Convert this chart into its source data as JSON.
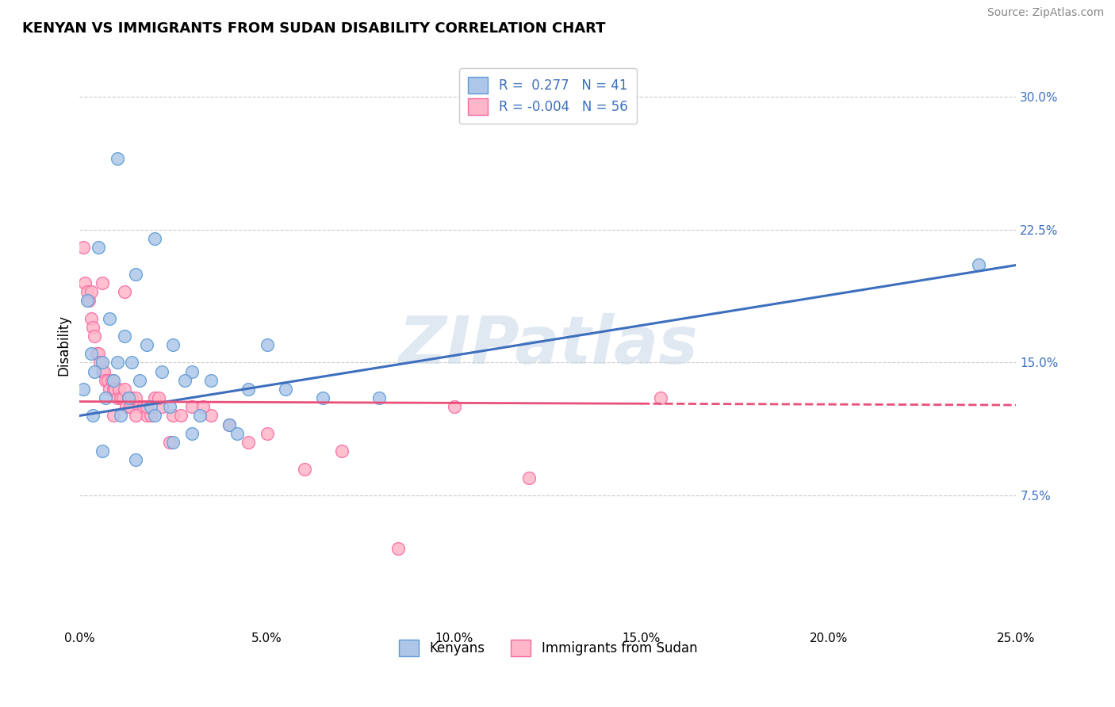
{
  "title": "KENYAN VS IMMIGRANTS FROM SUDAN DISABILITY CORRELATION CHART",
  "source": "Source: ZipAtlas.com",
  "ylabel": "Disability",
  "xlim": [
    0.0,
    25.0
  ],
  "ylim": [
    0.0,
    32.0
  ],
  "xticks": [
    0.0,
    5.0,
    10.0,
    15.0,
    20.0,
    25.0
  ],
  "yticks_right": [
    7.5,
    15.0,
    22.5,
    30.0
  ],
  "kenyan_R": 0.277,
  "kenyan_N": 41,
  "sudan_R": -0.004,
  "sudan_N": 56,
  "kenyan_color": "#aec7e8",
  "kenyan_edge": "#5b9bd5",
  "sudan_color": "#ffb6c8",
  "sudan_edge": "#f768a1",
  "trend_blue": "#3d6fbe",
  "trend_pink": "#e8507a",
  "legend_text_color": "#3d6fbe",
  "watermark": "ZIPatlas",
  "kenyan_x": [
    1.0,
    2.0,
    0.5,
    1.5,
    0.2,
    0.8,
    1.2,
    1.8,
    2.5,
    0.3,
    0.6,
    1.0,
    1.4,
    2.2,
    3.0,
    0.4,
    0.9,
    1.6,
    2.8,
    3.5,
    4.5,
    5.5,
    6.5,
    8.0,
    24.0,
    0.1,
    0.7,
    1.3,
    1.9,
    2.4,
    3.2,
    4.0,
    0.35,
    1.1,
    2.0,
    3.0,
    4.2,
    0.6,
    1.5,
    2.5,
    5.0
  ],
  "kenyan_y": [
    26.5,
    22.0,
    21.5,
    20.0,
    18.5,
    17.5,
    16.5,
    16.0,
    16.0,
    15.5,
    15.0,
    15.0,
    15.0,
    14.5,
    14.5,
    14.5,
    14.0,
    14.0,
    14.0,
    14.0,
    13.5,
    13.5,
    13.0,
    13.0,
    20.5,
    13.5,
    13.0,
    13.0,
    12.5,
    12.5,
    12.0,
    11.5,
    12.0,
    12.0,
    12.0,
    11.0,
    11.0,
    10.0,
    9.5,
    10.5,
    16.0
  ],
  "sudan_x": [
    0.1,
    0.15,
    0.2,
    0.25,
    0.3,
    0.35,
    0.4,
    0.45,
    0.5,
    0.55,
    0.6,
    0.65,
    0.7,
    0.75,
    0.8,
    0.85,
    0.9,
    0.95,
    1.0,
    1.05,
    1.1,
    1.15,
    1.2,
    1.25,
    1.3,
    1.35,
    1.4,
    1.5,
    1.6,
    1.7,
    1.8,
    1.9,
    2.0,
    2.2,
    2.5,
    3.0,
    3.5,
    4.0,
    4.5,
    5.0,
    6.0,
    7.0,
    8.5,
    10.0,
    12.0,
    15.5,
    0.3,
    0.6,
    0.9,
    1.2,
    1.5,
    1.8,
    2.1,
    2.4,
    2.7,
    3.3
  ],
  "sudan_y": [
    21.5,
    19.5,
    19.0,
    18.5,
    17.5,
    17.0,
    16.5,
    15.5,
    15.5,
    15.0,
    14.5,
    14.5,
    14.0,
    14.0,
    13.5,
    14.0,
    13.5,
    13.5,
    13.0,
    13.5,
    13.0,
    13.0,
    13.5,
    12.5,
    13.0,
    12.5,
    13.0,
    13.0,
    12.5,
    12.5,
    12.0,
    12.0,
    13.0,
    12.5,
    12.0,
    12.5,
    12.0,
    11.5,
    10.5,
    11.0,
    9.0,
    10.0,
    4.5,
    12.5,
    8.5,
    13.0,
    19.0,
    19.5,
    12.0,
    19.0,
    12.0,
    12.5,
    13.0,
    10.5,
    12.0,
    12.5
  ]
}
